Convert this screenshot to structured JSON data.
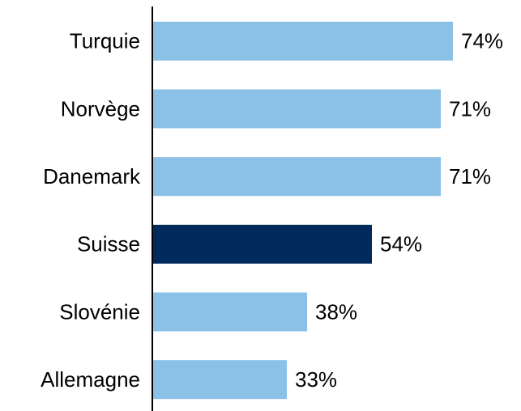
{
  "chart_data": {
    "type": "bar",
    "orientation": "horizontal",
    "categories": [
      "Turquie",
      "Norvège",
      "Danemark",
      "Suisse",
      "Slovénie",
      "Allemagne"
    ],
    "values": [
      74,
      71,
      71,
      54,
      38,
      33
    ],
    "value_labels": [
      "74%",
      "71%",
      "71%",
      "54%",
      "38%",
      "33%"
    ],
    "colors": [
      "#8bc1e6",
      "#8bc1e6",
      "#8bc1e6",
      "#002b5c",
      "#8bc1e6",
      "#8bc1e6"
    ],
    "xlim": [
      0,
      90
    ]
  }
}
